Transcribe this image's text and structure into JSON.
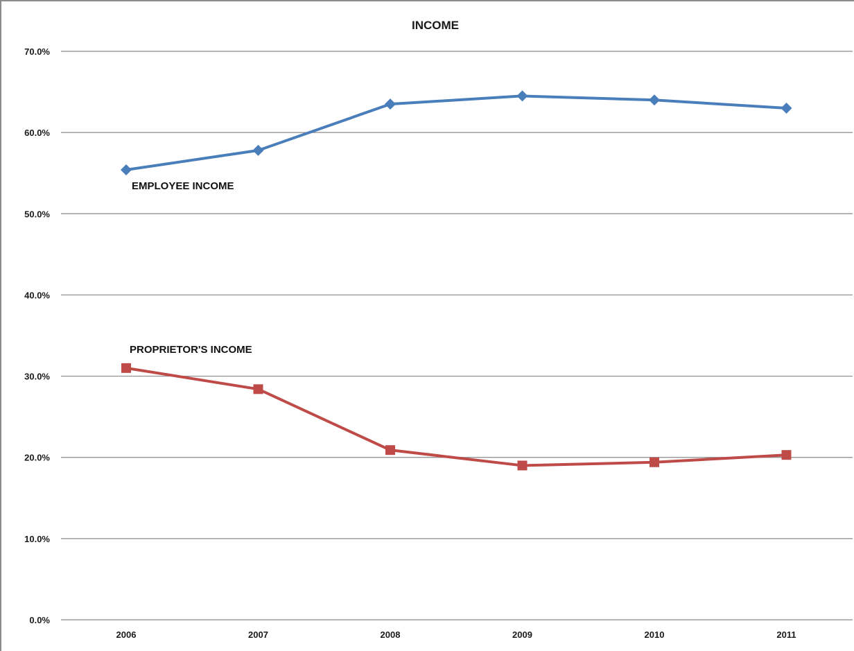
{
  "chart_data": {
    "type": "line",
    "title": "INCOME",
    "xlabel": "",
    "ylabel": "",
    "categories": [
      "2006",
      "2007",
      "2008",
      "2009",
      "2010",
      "2011"
    ],
    "ylim": [
      0,
      70
    ],
    "yticks": [
      "0.0%",
      "10.0%",
      "20.0%",
      "30.0%",
      "40.0%",
      "50.0%",
      "60.0%",
      "70.0%"
    ],
    "grid": true,
    "series": [
      {
        "name": "EMPLOYEE INCOME",
        "values": [
          55.4,
          57.8,
          63.5,
          64.5,
          64.0,
          63.0
        ],
        "color": "#4a7ebb",
        "marker": "diamond"
      },
      {
        "name": "PROPRIETOR'S INCOME",
        "values": [
          31.0,
          28.4,
          20.9,
          19.0,
          19.4,
          20.3
        ],
        "color": "#be4b48",
        "marker": "square"
      }
    ]
  }
}
